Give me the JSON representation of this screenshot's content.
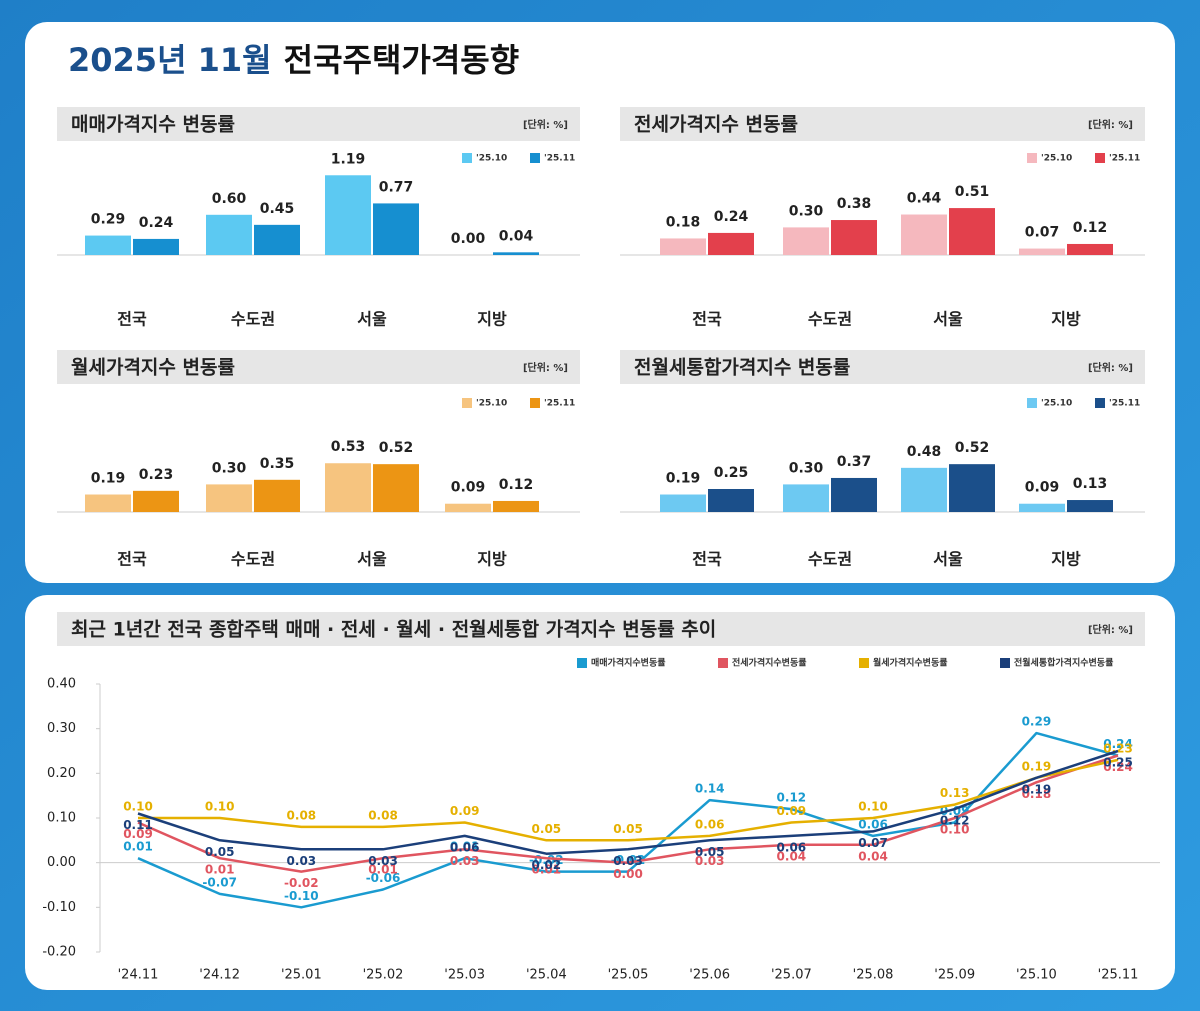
{
  "header": {
    "date": "2025년 11월",
    "title": "전국주택가격동향"
  },
  "chart_data": [
    {
      "type": "bar",
      "title": "매매가격지수 변동률",
      "unit": "[단위: %]",
      "categories": [
        "전국",
        "수도권",
        "서울",
        "지방"
      ],
      "series": [
        {
          "name": "'25.10",
          "color": "#5cc9f2",
          "values": [
            0.29,
            0.6,
            1.19,
            0.0
          ],
          "value_labels": [
            "0.29",
            "0.60",
            "1.19",
            "0.00"
          ]
        },
        {
          "name": "'25.11",
          "color": "#168fd0",
          "values": [
            0.24,
            0.45,
            0.77,
            0.04
          ],
          "value_labels": [
            "0.24",
            "0.45",
            "0.77",
            "0.04"
          ]
        }
      ]
    },
    {
      "type": "bar",
      "title": "전세가격지수 변동률",
      "unit": "[단위: %]",
      "categories": [
        "전국",
        "수도권",
        "서울",
        "지방"
      ],
      "series": [
        {
          "name": "'25.10",
          "color": "#f5b8be",
          "values": [
            0.18,
            0.3,
            0.44,
            0.07
          ],
          "value_labels": [
            "0.18",
            "0.30",
            "0.44",
            "0.07"
          ]
        },
        {
          "name": "'25.11",
          "color": "#e3404c",
          "values": [
            0.24,
            0.38,
            0.51,
            0.12
          ],
          "value_labels": [
            "0.24",
            "0.38",
            "0.51",
            "0.12"
          ]
        }
      ]
    },
    {
      "type": "bar",
      "title": "월세가격지수 변동률",
      "unit": "[단위: %]",
      "categories": [
        "전국",
        "수도권",
        "서울",
        "지방"
      ],
      "series": [
        {
          "name": "'25.10",
          "color": "#f6c47f",
          "values": [
            0.19,
            0.3,
            0.53,
            0.09
          ],
          "value_labels": [
            "0.19",
            "0.30",
            "0.53",
            "0.09"
          ]
        },
        {
          "name": "'25.11",
          "color": "#ec9514",
          "values": [
            0.23,
            0.35,
            0.52,
            0.12
          ],
          "value_labels": [
            "0.23",
            "0.35",
            "0.52",
            "0.12"
          ]
        }
      ]
    },
    {
      "type": "bar",
      "title": "전월세통합가격지수 변동률",
      "unit": "[단위: %]",
      "categories": [
        "전국",
        "수도권",
        "서울",
        "지방"
      ],
      "series": [
        {
          "name": "'25.10",
          "color": "#6dc9f2",
          "values": [
            0.19,
            0.3,
            0.48,
            0.09
          ],
          "value_labels": [
            "0.19",
            "0.30",
            "0.48",
            "0.09"
          ]
        },
        {
          "name": "'25.11",
          "color": "#1b4f8a",
          "values": [
            0.25,
            0.37,
            0.52,
            0.13
          ],
          "value_labels": [
            "0.25",
            "0.37",
            "0.52",
            "0.13"
          ]
        }
      ]
    },
    {
      "type": "line",
      "title": "최근 1년간 전국 종합주택 매매 · 전세 · 월세 · 전월세통합 가격지수 변동률 추이",
      "unit": "[단위: %]",
      "categories": [
        "'24.11",
        "'24.12",
        "'25.01",
        "'25.02",
        "'25.03",
        "'25.04",
        "'25.05",
        "'25.06",
        "'25.07",
        "'25.08",
        "'25.09",
        "'25.10",
        "'25.11"
      ],
      "ylim": [
        -0.2,
        0.4
      ],
      "yticks": [
        {
          "value": -0.2,
          "label": "-0.20"
        },
        {
          "value": -0.1,
          "label": "-0.10"
        },
        {
          "value": 0,
          "label": "0.00"
        },
        {
          "value": 0.1,
          "label": "0.10"
        },
        {
          "value": 0.2,
          "label": "0.20"
        },
        {
          "value": 0.3,
          "label": "0.30"
        },
        {
          "value": 0.4,
          "label": "0.40"
        }
      ],
      "grid": false,
      "series": [
        {
          "name": "매매가격지수변동률",
          "color": "#1a9bd0",
          "values": [
            0.01,
            -0.07,
            -0.1,
            -0.06,
            0.01,
            -0.02,
            -0.02,
            0.14,
            0.12,
            0.06,
            0.09,
            0.29,
            0.24
          ],
          "value_labels": [
            "0.01",
            "-0.07",
            "-0.10",
            "-0.06",
            "0.01",
            "-0.02",
            "-0.02",
            "0.14",
            "0.12",
            "0.06",
            "0.09",
            "0.29",
            "0.24"
          ]
        },
        {
          "name": "전세가격지수변동률",
          "color": "#e05560",
          "values": [
            0.09,
            0.01,
            -0.02,
            0.01,
            0.03,
            0.01,
            0.0,
            0.03,
            0.04,
            0.04,
            0.1,
            0.18,
            0.24
          ],
          "value_labels": [
            "0.09",
            "0.01",
            "-0.02",
            "0.01",
            "0.03",
            "0.01",
            "0.00",
            "0.03",
            "0.04",
            "0.04",
            "0.10",
            "0.18",
            "0.24"
          ]
        },
        {
          "name": "월세가격지수변동률",
          "color": "#e5b000",
          "values": [
            0.1,
            0.1,
            0.08,
            0.08,
            0.09,
            0.05,
            0.05,
            0.06,
            0.09,
            0.1,
            0.13,
            0.19,
            0.23
          ],
          "value_labels": [
            "0.10",
            "0.10",
            "0.08",
            "0.08",
            "0.09",
            "0.05",
            "0.05",
            "0.06",
            "0.09",
            "0.10",
            "0.13",
            "0.19",
            "0.23"
          ]
        },
        {
          "name": "전월세통합가격지수변동률",
          "color": "#1b3f7a",
          "values": [
            0.11,
            0.05,
            0.03,
            0.03,
            0.06,
            0.02,
            0.03,
            0.05,
            0.06,
            0.07,
            0.12,
            0.19,
            0.25
          ],
          "value_labels": [
            "0.11",
            "0.05",
            "0.03",
            "0.03",
            "0.06",
            "0.02",
            "0.03",
            "0.05",
            "0.06",
            "0.07",
            "0.12",
            "0.19",
            "0.25"
          ]
        }
      ]
    }
  ]
}
